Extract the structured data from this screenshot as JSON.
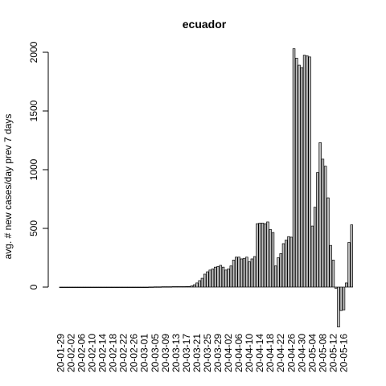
{
  "chart_data": {
    "type": "bar",
    "title": "ecuador",
    "xlabel": "",
    "ylabel": "avg. # new cases/day prev  7  days",
    "ylim": [
      -350,
      2050
    ],
    "y_ticks": [
      0,
      500,
      1000,
      1500,
      2000
    ],
    "x_tick_labels": [
      "20-01-29",
      "20-02-02",
      "20-02-06",
      "20-02-10",
      "20-02-14",
      "20-02-18",
      "20-02-22",
      "20-02-26",
      "20-03-01",
      "20-03-05",
      "20-03-09",
      "20-03-13",
      "20-03-17",
      "20-03-21",
      "20-03-25",
      "20-03-29",
      "20-04-02",
      "20-04-06",
      "20-04-10",
      "20-04-14",
      "20-04-18",
      "20-04-22",
      "20-04-26",
      "20-04-30",
      "20-05-04",
      "20-05-08",
      "20-05-12",
      "20-05-16"
    ],
    "series": [
      {
        "values": [
          0,
          0,
          0,
          0,
          0,
          0,
          0,
          0,
          0,
          0,
          0,
          0,
          0,
          0,
          0,
          0,
          0,
          0,
          0,
          0,
          0,
          0,
          0,
          0,
          0,
          0,
          0,
          0,
          0,
          0,
          0,
          0,
          0,
          0,
          1,
          1,
          2,
          2,
          2,
          3,
          3,
          3,
          3,
          4,
          4,
          4,
          4,
          4,
          5,
          5,
          10,
          20,
          35,
          55,
          75,
          110,
          130,
          145,
          155,
          170,
          175,
          185,
          170,
          145,
          155,
          180,
          230,
          255,
          255,
          240,
          245,
          255,
          215,
          240,
          260,
          540,
          545,
          545,
          540,
          555,
          490,
          465,
          180,
          250,
          285,
          370,
          400,
          430,
          425,
          2030,
          1950,
          1890,
          1870,
          1975,
          1970,
          1960,
          520,
          680,
          975,
          1230,
          1090,
          1030,
          760,
          355,
          230,
          -10,
          -340,
          -200,
          -195,
          35,
          380,
          530
        ]
      }
    ]
  }
}
